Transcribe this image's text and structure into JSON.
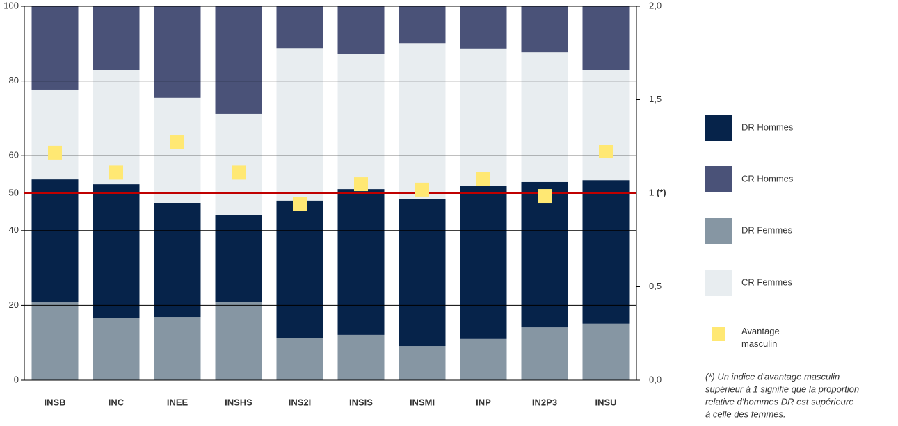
{
  "chart_data": {
    "type": "bar",
    "stacked": true,
    "categories": [
      "INSB",
      "INC",
      "INEE",
      "INSHS",
      "INS2I",
      "INSIS",
      "INSMI",
      "INP",
      "IN2P3",
      "INSU"
    ],
    "series": [
      {
        "name": "DR Femmes",
        "color": "#8696a3",
        "values": [
          20.8,
          16.7,
          16.9,
          21.0,
          11.3,
          12.1,
          9.1,
          11.0,
          14.1,
          15.1
        ]
      },
      {
        "name": "DR Hommes",
        "color": "#06234a",
        "values": [
          32.9,
          35.7,
          30.5,
          23.2,
          36.7,
          39.0,
          39.4,
          41.0,
          38.9,
          38.4
        ]
      },
      {
        "name": "CR Femmes",
        "color": "#e8edf0",
        "values": [
          24.0,
          30.5,
          28.1,
          27.0,
          40.8,
          36.1,
          41.6,
          36.7,
          34.7,
          29.4
        ]
      },
      {
        "name": "CR Hommes",
        "color": "#4a5278",
        "values": [
          22.3,
          17.1,
          24.5,
          28.8,
          11.2,
          12.8,
          9.9,
          11.3,
          12.3,
          17.1
        ]
      },
      {
        "name": "Avantage masculin",
        "type": "scatter",
        "axis": "y2",
        "color": "#ffe873",
        "values": [
          1.216,
          1.11,
          1.275,
          1.11,
          0.944,
          1.048,
          1.019,
          1.078,
          0.985,
          1.223
        ]
      }
    ],
    "ylim": [
      0,
      100
    ],
    "yticks": [
      0,
      20,
      40,
      60,
      80,
      100
    ],
    "y2lim": [
      0,
      2
    ],
    "y2ticks": [
      {
        "value": 0,
        "label": "0,0"
      },
      {
        "value": 0.5,
        "label": "0,5"
      },
      {
        "value": 1.5,
        "label": "1,5"
      },
      {
        "value": 2,
        "label": "2,0"
      }
    ],
    "grid": true,
    "reference_line": {
      "color": "#c00000",
      "y": {
        "value": 50,
        "label": "50"
      },
      "y2": {
        "value": 1,
        "label": "1 (*)"
      }
    },
    "footnote": [
      "(*) Un indice d'avantage masculin",
      "supérieur à 1 signifie que la proportion",
      "relative d'hommes DR est supérieure",
      "à celle des femmes."
    ]
  }
}
